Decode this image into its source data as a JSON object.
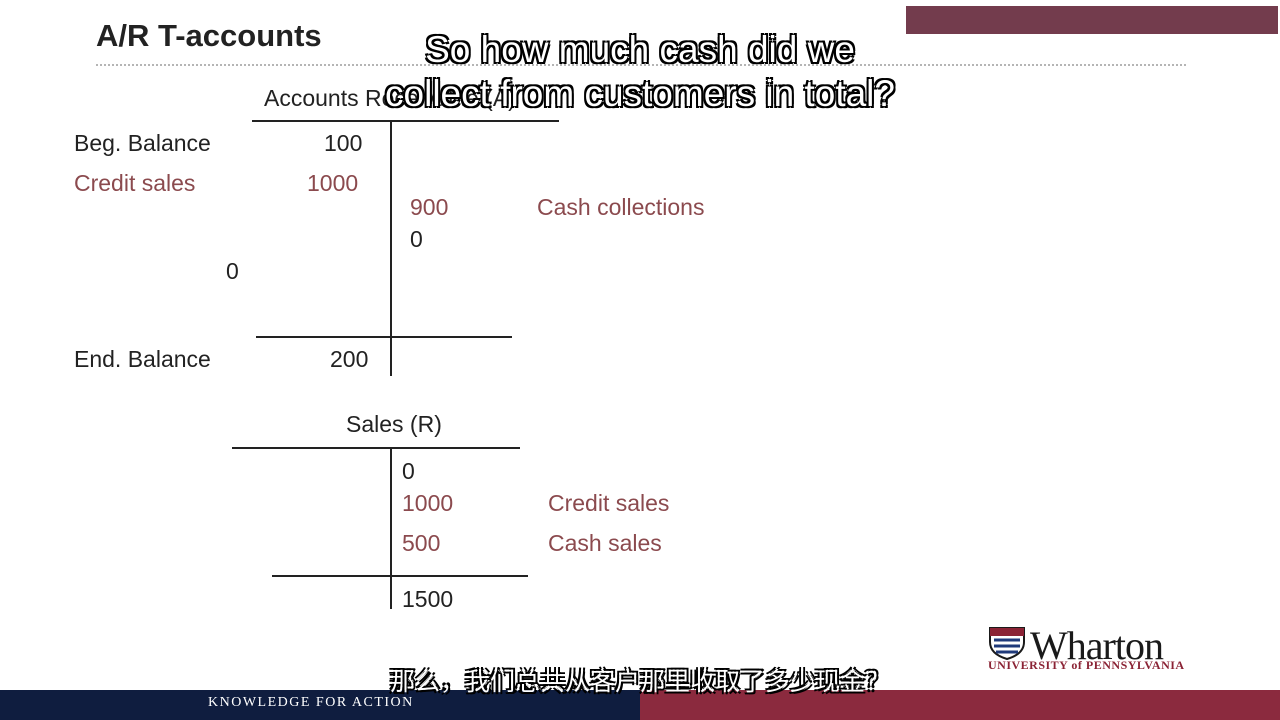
{
  "slide": {
    "title": "A/R T-accounts"
  },
  "subtitles": {
    "english": "So how much cash did we collect from customers in total?",
    "chinese": "那么，我们总共从客户那里收取了多少现金？"
  },
  "ar_account": {
    "title": "Accounts Receivable (A)",
    "beg_label": "Beg. Balance",
    "beg_value": "100",
    "credit_sales_label": "Credit sales",
    "credit_sales_value": "1000",
    "cash_collections_value": "900",
    "cash_collections_label": "Cash collections",
    "right_zero": "0",
    "left_zero": "0",
    "end_label": "End. Balance",
    "end_value": "200"
  },
  "sales_account": {
    "title": "Sales (R)",
    "opening": "0",
    "credit_sales_value": "1000",
    "credit_sales_label": "Credit sales",
    "cash_sales_value": "500",
    "cash_sales_label": "Cash sales",
    "total": "1500"
  },
  "branding": {
    "logo_word": "Wharton",
    "logo_sub": "UNIVERSITY of PENNSYLVANIA",
    "footer_tagline": "KNOWLEDGE FOR ACTION"
  },
  "colors": {
    "accent_red": "#8b4a4e",
    "footer_navy": "#0f1d3f",
    "footer_maroon": "#8b2a3e"
  }
}
